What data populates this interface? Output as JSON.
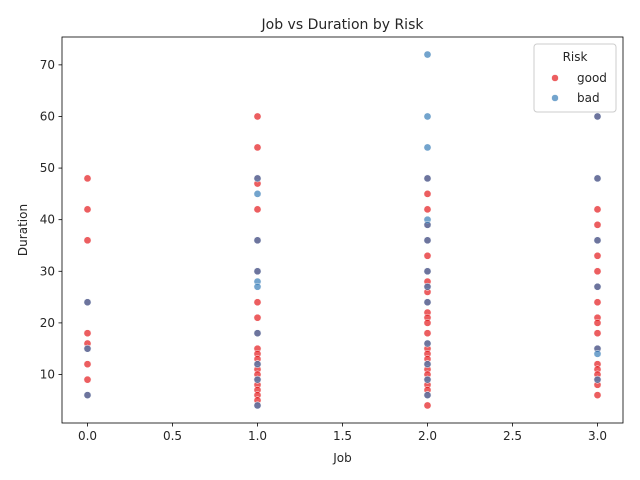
{
  "chart_data": {
    "type": "scatter",
    "title": "Job vs Duration by Risk",
    "xlabel": "Job",
    "ylabel": "Duration",
    "xlim": [
      -0.15,
      3.15
    ],
    "ylim": [
      0.6,
      75.4
    ],
    "xticks": [
      0.0,
      0.5,
      1.0,
      1.5,
      2.0,
      2.5,
      3.0
    ],
    "xtick_labels": [
      "0.0",
      "0.5",
      "1.0",
      "1.5",
      "2.0",
      "2.5",
      "3.0"
    ],
    "yticks": [
      10,
      20,
      30,
      40,
      50,
      60,
      70
    ],
    "ytick_labels": [
      "10",
      "20",
      "30",
      "40",
      "50",
      "60",
      "70"
    ],
    "grid": false,
    "legend": {
      "title": "Risk",
      "placement": "top-right"
    },
    "series": [
      {
        "name": "good",
        "color": "#e41a1c",
        "points": [
          [
            0,
            48
          ],
          [
            0,
            42
          ],
          [
            0,
            36
          ],
          [
            0,
            24
          ],
          [
            0,
            18
          ],
          [
            0,
            16
          ],
          [
            0,
            15
          ],
          [
            0,
            12
          ],
          [
            0,
            9
          ],
          [
            0,
            6
          ],
          [
            1,
            60
          ],
          [
            1,
            54
          ],
          [
            1,
            48
          ],
          [
            1,
            47
          ],
          [
            1,
            42
          ],
          [
            1,
            36
          ],
          [
            1,
            30
          ],
          [
            1,
            24
          ],
          [
            1,
            21
          ],
          [
            1,
            18
          ],
          [
            1,
            15
          ],
          [
            1,
            14
          ],
          [
            1,
            13
          ],
          [
            1,
            12
          ],
          [
            1,
            11
          ],
          [
            1,
            10
          ],
          [
            1,
            9
          ],
          [
            1,
            8
          ],
          [
            1,
            7
          ],
          [
            1,
            6
          ],
          [
            1,
            5
          ],
          [
            1,
            4
          ],
          [
            2,
            48
          ],
          [
            2,
            45
          ],
          [
            2,
            42
          ],
          [
            2,
            39
          ],
          [
            2,
            36
          ],
          [
            2,
            33
          ],
          [
            2,
            30
          ],
          [
            2,
            28
          ],
          [
            2,
            27
          ],
          [
            2,
            26
          ],
          [
            2,
            24
          ],
          [
            2,
            22
          ],
          [
            2,
            21
          ],
          [
            2,
            20
          ],
          [
            2,
            18
          ],
          [
            2,
            16
          ],
          [
            2,
            15
          ],
          [
            2,
            14
          ],
          [
            2,
            13
          ],
          [
            2,
            12
          ],
          [
            2,
            11
          ],
          [
            2,
            10
          ],
          [
            2,
            9
          ],
          [
            2,
            8
          ],
          [
            2,
            7
          ],
          [
            2,
            6
          ],
          [
            2,
            4
          ],
          [
            3,
            60
          ],
          [
            3,
            48
          ],
          [
            3,
            42
          ],
          [
            3,
            39
          ],
          [
            3,
            36
          ],
          [
            3,
            33
          ],
          [
            3,
            30
          ],
          [
            3,
            27
          ],
          [
            3,
            24
          ],
          [
            3,
            21
          ],
          [
            3,
            20
          ],
          [
            3,
            18
          ],
          [
            3,
            15
          ],
          [
            3,
            12
          ],
          [
            3,
            11
          ],
          [
            3,
            10
          ],
          [
            3,
            9
          ],
          [
            3,
            8
          ],
          [
            3,
            6
          ]
        ]
      },
      {
        "name": "bad",
        "color": "#377eb8",
        "points": [
          [
            0,
            24
          ],
          [
            0,
            15
          ],
          [
            0,
            6
          ],
          [
            1,
            48
          ],
          [
            1,
            45
          ],
          [
            1,
            36
          ],
          [
            1,
            30
          ],
          [
            1,
            28
          ],
          [
            1,
            27
          ],
          [
            1,
            18
          ],
          [
            1,
            12
          ],
          [
            1,
            9
          ],
          [
            1,
            4
          ],
          [
            2,
            72
          ],
          [
            2,
            60
          ],
          [
            2,
            54
          ],
          [
            2,
            48
          ],
          [
            2,
            40
          ],
          [
            2,
            39
          ],
          [
            2,
            36
          ],
          [
            2,
            30
          ],
          [
            2,
            27
          ],
          [
            2,
            24
          ],
          [
            2,
            16
          ],
          [
            2,
            12
          ],
          [
            2,
            9
          ],
          [
            2,
            6
          ],
          [
            3,
            60
          ],
          [
            3,
            48
          ],
          [
            3,
            36
          ],
          [
            3,
            27
          ],
          [
            3,
            15
          ],
          [
            3,
            14
          ],
          [
            3,
            9
          ]
        ]
      }
    ]
  }
}
